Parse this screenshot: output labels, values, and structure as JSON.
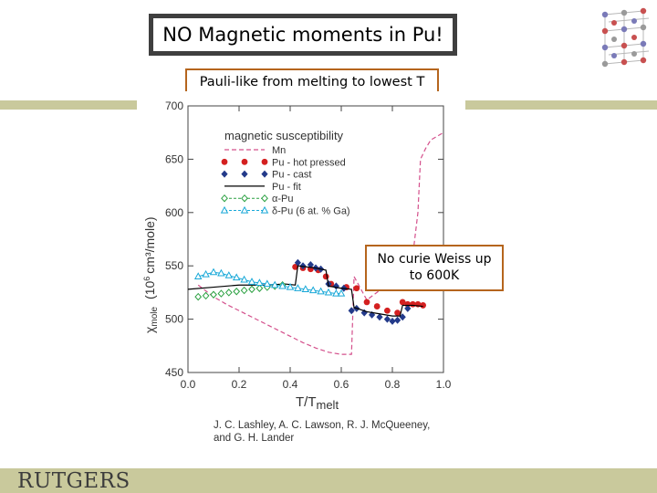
{
  "slide": {
    "title": "NO Magnetic moments in Pu!",
    "subtitle": "Pauli-like from melting to lowest T",
    "callout_line1": "No curie Weiss up",
    "callout_line2": "to 600K",
    "logo_text": "RUTGERS",
    "colors": {
      "band": "#c9c99c",
      "box_border": "#b5651d",
      "title_border": "#3f3f3f"
    }
  },
  "chart_data": {
    "type": "line",
    "legend_title": "magnetic susceptibility",
    "xlabel": "T/T",
    "xlabel_sub": "melt",
    "ylabel_main": "χ",
    "ylabel_sub": "mole",
    "ylabel_units": "(10",
    "ylabel_exp": "6",
    "ylabel_tail": "cm³/mole)",
    "xlim": [
      0.0,
      1.0
    ],
    "ylim": [
      450,
      700
    ],
    "xticks": [
      "0.0",
      "0.2",
      "0.4",
      "0.6",
      "0.8",
      "1.0"
    ],
    "yticks": [
      "450",
      "500",
      "550",
      "600",
      "650",
      "700"
    ],
    "credit_line1": "J. C. Lashley, A. C. Lawson, R. J. McQueeney,",
    "credit_line2": "and G. H. Lander",
    "series": [
      {
        "name": "Mn",
        "style": "dashed",
        "color": "#d4508c",
        "x": [
          0.04,
          0.1,
          0.15,
          0.2,
          0.25,
          0.3,
          0.35,
          0.4,
          0.45,
          0.5,
          0.55,
          0.6,
          0.64,
          0.65,
          0.7,
          0.75,
          0.8,
          0.85,
          0.88,
          0.9,
          0.91,
          0.93,
          0.95,
          1.0
        ],
        "y": [
          532,
          521,
          514,
          508,
          502,
          496,
          490,
          484,
          478,
          473,
          469,
          467,
          467,
          540,
          518,
          527,
          535,
          545,
          560,
          600,
          650,
          660,
          668,
          675
        ]
      },
      {
        "name": "Pu - hot pressed",
        "style": "circle",
        "color": "#d42020",
        "x": [
          0.42,
          0.45,
          0.48,
          0.51,
          0.54,
          0.56,
          0.62,
          0.66,
          0.7,
          0.74,
          0.78,
          0.82,
          0.84,
          0.86,
          0.88,
          0.9,
          0.92
        ],
        "y": [
          549,
          548,
          547,
          546,
          540,
          533,
          530,
          529,
          516,
          512,
          508,
          506,
          516,
          514,
          514,
          514,
          513
        ]
      },
      {
        "name": "Pu - cast",
        "style": "diamond",
        "color": "#233a8a",
        "x": [
          0.43,
          0.45,
          0.48,
          0.5,
          0.52,
          0.55,
          0.58,
          0.61,
          0.64,
          0.66,
          0.69,
          0.72,
          0.75,
          0.78,
          0.8,
          0.82,
          0.84,
          0.86
        ],
        "y": [
          553,
          550,
          551,
          548,
          547,
          533,
          531,
          529,
          508,
          510,
          506,
          504,
          502,
          500,
          498,
          499,
          502,
          510
        ]
      },
      {
        "name": "Pu - fit",
        "style": "solid",
        "color": "#000000",
        "x": [
          0.0,
          0.1,
          0.2,
          0.3,
          0.38,
          0.42,
          0.43,
          0.5,
          0.54,
          0.55,
          0.6,
          0.64,
          0.65,
          0.7,
          0.75,
          0.8,
          0.83,
          0.84,
          0.88,
          0.92
        ],
        "y": [
          528,
          530,
          532,
          532,
          533,
          532,
          550,
          548,
          546,
          531,
          529,
          528,
          511,
          507,
          505,
          503,
          503,
          513,
          513,
          512
        ]
      },
      {
        "name": "α-Pu",
        "style": "open-diamond",
        "color": "#2aa040",
        "x": [
          0.04,
          0.07,
          0.1,
          0.13,
          0.16,
          0.19,
          0.22,
          0.25,
          0.28,
          0.31,
          0.34,
          0.37
        ],
        "y": [
          521,
          522,
          523,
          524,
          525,
          526,
          527,
          528,
          529,
          530,
          531,
          532
        ]
      },
      {
        "name": "δ-Pu (6 at. % Ga)",
        "style": "open-triangle",
        "color": "#18a8d8",
        "x": [
          0.04,
          0.07,
          0.1,
          0.13,
          0.16,
          0.19,
          0.22,
          0.25,
          0.28,
          0.31,
          0.34,
          0.37,
          0.4,
          0.43,
          0.46,
          0.49,
          0.52,
          0.55,
          0.58,
          0.6
        ],
        "y": [
          540,
          542,
          544,
          543,
          541,
          539,
          537,
          535,
          534,
          533,
          532,
          531,
          530,
          529,
          528,
          527,
          526,
          525,
          524,
          524
        ]
      }
    ]
  }
}
